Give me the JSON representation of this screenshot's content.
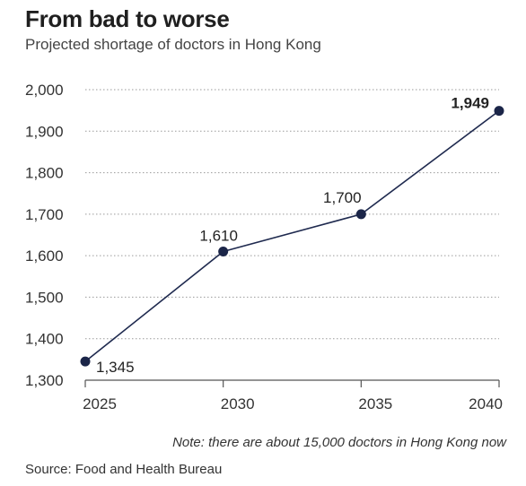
{
  "title": "From bad to worse",
  "subtitle": "Projected shortage of doctors in Hong Kong",
  "note": "Note: there are about 15,000 doctors in Hong Kong now",
  "source": "Source: Food and Health Bureau",
  "colors": {
    "line": "#1f2a4f",
    "marker": "#1b2548",
    "grid": "#9a9a9a",
    "axis": "#555555",
    "text": "#333333"
  },
  "chart_data": {
    "type": "line",
    "title": "From bad to worse",
    "subtitle": "Projected shortage of doctors in Hong Kong",
    "x": [
      "2025",
      "2030",
      "2035",
      "2040"
    ],
    "series": [
      {
        "values": [
          1345,
          1610,
          1700,
          1949
        ]
      }
    ],
    "data_labels": [
      "1,345",
      "1,610",
      "1,700",
      "1,949"
    ],
    "ylim": [
      1300,
      2000
    ],
    "yticks": [
      1300,
      1400,
      1500,
      1600,
      1700,
      1800,
      1900,
      2000
    ],
    "ytick_labels": [
      "1,300",
      "1,400",
      "1,500",
      "1,600",
      "1,700",
      "1,800",
      "1,900",
      "2,000"
    ],
    "grid": true,
    "grid_style": "dotted"
  }
}
